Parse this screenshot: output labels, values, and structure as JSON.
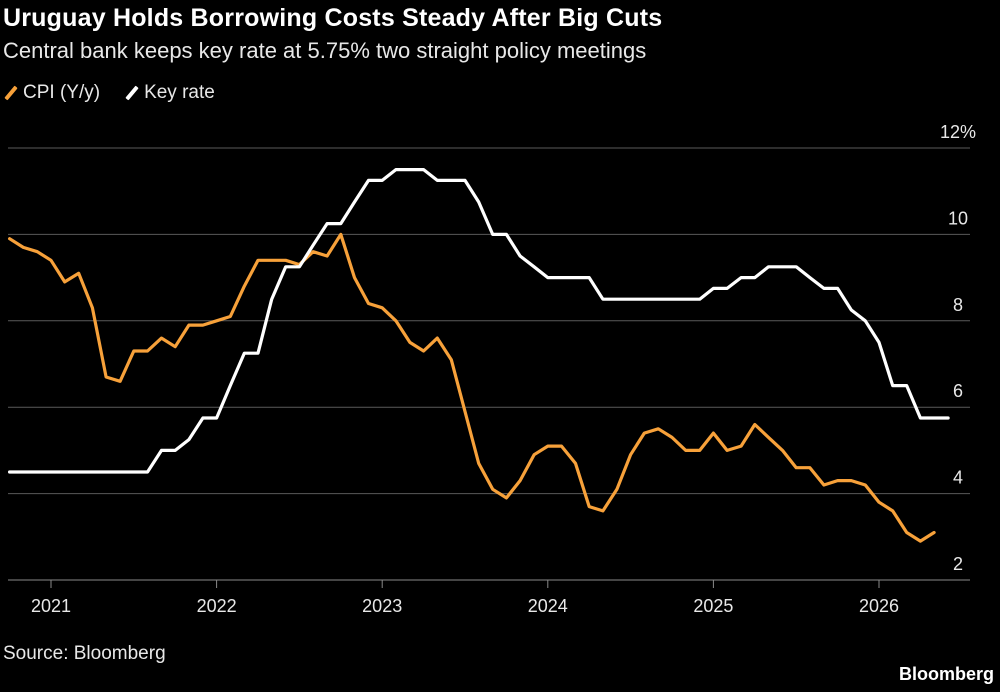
{
  "title": "Uruguay Holds Borrowing Costs Steady After Big Cuts",
  "subtitle": "Central bank keeps key rate at 5.75% two straight policy meetings",
  "source": "Source: Bloomberg",
  "brand": "Bloomberg",
  "colors": {
    "cpi": "#f7a13a",
    "key_rate": "#ffffff",
    "grid": "#5a5a5a",
    "axis": "#8a8a8a"
  },
  "chart_data": {
    "type": "line",
    "title": "Uruguay Holds Borrowing Costs Steady After Big Cuts",
    "subtitle": "Central bank keeps key rate at 5.75% two straight policy meetings",
    "xlim": [
      2020.75,
      2026.6
    ],
    "ylim": [
      2,
      12
    ],
    "y_ticks": [
      {
        "value": 12,
        "label": "12%"
      },
      {
        "value": 10,
        "label": "10"
      },
      {
        "value": 8,
        "label": "8"
      },
      {
        "value": 6,
        "label": "6"
      },
      {
        "value": 4,
        "label": "4"
      },
      {
        "value": 2,
        "label": "2"
      }
    ],
    "x_ticks": [
      {
        "value": 2021,
        "label": "2021"
      },
      {
        "value": 2022,
        "label": "2022"
      },
      {
        "value": 2023,
        "label": "2023"
      },
      {
        "value": 2024,
        "label": "2024"
      },
      {
        "value": 2025,
        "label": "2025"
      },
      {
        "value": 2026,
        "label": "2026"
      }
    ],
    "grid": "horizontal",
    "legend_position": "top-left",
    "series": [
      {
        "name": "CPI (Y/y)",
        "x": [
          2020.75,
          2020.833,
          2020.917,
          2021.0,
          2021.083,
          2021.167,
          2021.25,
          2021.333,
          2021.417,
          2021.5,
          2021.583,
          2021.667,
          2021.75,
          2021.833,
          2021.917,
          2022.0,
          2022.083,
          2022.167,
          2022.25,
          2022.333,
          2022.417,
          2022.5,
          2022.583,
          2022.667,
          2022.75,
          2022.833,
          2022.917,
          2023.0,
          2023.083,
          2023.167,
          2023.25,
          2023.333,
          2023.417,
          2023.5,
          2023.583,
          2023.667,
          2023.75,
          2023.833,
          2023.917,
          2024.0,
          2024.083,
          2024.167,
          2024.25,
          2024.333,
          2024.417,
          2024.5,
          2024.583,
          2024.667,
          2024.75,
          2024.833,
          2024.917,
          2025.0,
          2025.083,
          2025.167,
          2025.25,
          2025.333,
          2025.417,
          2025.5,
          2025.583,
          2025.667,
          2025.75,
          2025.833,
          2025.917,
          2026.0,
          2026.083,
          2026.167,
          2026.25,
          2026.333
        ],
        "values": [
          9.9,
          9.7,
          9.6,
          9.4,
          8.9,
          9.1,
          8.3,
          6.7,
          6.6,
          7.3,
          7.3,
          7.6,
          7.4,
          7.9,
          7.9,
          8.0,
          8.1,
          8.8,
          9.4,
          9.4,
          9.4,
          9.3,
          9.6,
          9.5,
          10.0,
          9.0,
          8.4,
          8.3,
          8.0,
          7.5,
          7.3,
          7.6,
          7.1,
          5.9,
          4.7,
          4.1,
          3.9,
          4.3,
          4.9,
          5.1,
          5.1,
          4.7,
          3.7,
          3.6,
          4.1,
          4.9,
          5.4,
          5.5,
          5.3,
          5.0,
          5.0,
          5.4,
          5.0,
          5.1,
          5.6,
          5.3,
          5.0,
          4.6,
          4.6,
          4.2,
          4.3,
          4.3,
          4.2,
          3.8,
          3.6,
          3.1,
          2.9,
          3.1
        ]
      },
      {
        "name": "Key rate",
        "x": [
          2020.75,
          2021.0,
          2021.25,
          2021.583,
          2021.667,
          2021.75,
          2021.833,
          2021.917,
          2022.0,
          2022.083,
          2022.167,
          2022.25,
          2022.333,
          2022.417,
          2022.5,
          2022.583,
          2022.667,
          2022.75,
          2022.833,
          2022.917,
          2023.0,
          2023.083,
          2023.167,
          2023.25,
          2023.333,
          2023.417,
          2023.5,
          2023.583,
          2023.667,
          2023.75,
          2023.833,
          2023.917,
          2024.0,
          2024.083,
          2024.167,
          2024.25,
          2024.333,
          2024.417,
          2024.5,
          2024.583,
          2024.667,
          2024.75,
          2024.833,
          2024.917,
          2025.0,
          2025.083,
          2025.167,
          2025.25,
          2025.333,
          2025.417,
          2025.5,
          2025.583,
          2025.667,
          2025.75,
          2025.833,
          2025.917,
          2026.0,
          2026.083,
          2026.167,
          2026.25,
          2026.333,
          2026.417
        ],
        "values": [
          4.5,
          4.5,
          4.5,
          4.5,
          5.0,
          5.0,
          5.25,
          5.75,
          5.75,
          6.5,
          7.25,
          7.25,
          8.5,
          9.25,
          9.25,
          9.75,
          10.25,
          10.25,
          10.75,
          11.25,
          11.25,
          11.5,
          11.5,
          11.5,
          11.25,
          11.25,
          11.25,
          10.75,
          10.0,
          10.0,
          9.5,
          9.25,
          9.0,
          9.0,
          9.0,
          9.0,
          8.5,
          8.5,
          8.5,
          8.5,
          8.5,
          8.5,
          8.5,
          8.5,
          8.75,
          8.75,
          9.0,
          9.0,
          9.25,
          9.25,
          9.25,
          9.0,
          8.75,
          8.75,
          8.25,
          8.0,
          7.5,
          6.5,
          6.5,
          5.75,
          5.75,
          5.75
        ]
      }
    ]
  }
}
